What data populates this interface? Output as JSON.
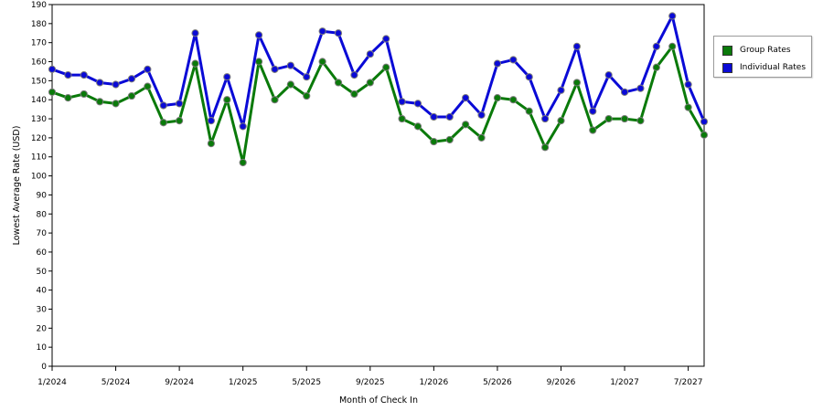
{
  "chart_data": {
    "type": "line",
    "title": "",
    "xlabel": "Month of Check In",
    "ylabel": "Lowest Average Rate (USD)",
    "ylim": [
      0,
      190
    ],
    "y_ticks": [
      0,
      10,
      20,
      30,
      40,
      50,
      60,
      70,
      80,
      90,
      100,
      110,
      120,
      130,
      140,
      150,
      160,
      170,
      180,
      190
    ],
    "x_ticks": [
      {
        "index": 0,
        "label": "1/2024"
      },
      {
        "index": 4,
        "label": "5/2024"
      },
      {
        "index": 8,
        "label": "9/2024"
      },
      {
        "index": 12,
        "label": "1/2025"
      },
      {
        "index": 16,
        "label": "5/2025"
      },
      {
        "index": 20,
        "label": "9/2025"
      },
      {
        "index": 24,
        "label": "1/2026"
      },
      {
        "index": 28,
        "label": "5/2026"
      },
      {
        "index": 32,
        "label": "9/2026"
      },
      {
        "index": 36,
        "label": "1/2027"
      },
      {
        "index": 40,
        "label": "7/2027"
      }
    ],
    "x_index_range": [
      0,
      41
    ],
    "grid": true,
    "legend_position": "right",
    "series": [
      {
        "name": "Group Rates",
        "color": "#0a7a0a",
        "values": [
          144,
          141,
          143,
          139,
          138,
          142,
          147,
          128,
          129,
          159,
          117,
          140,
          107,
          160,
          140,
          148,
          142,
          160,
          149,
          143,
          149,
          157,
          130,
          126,
          118,
          119,
          127,
          120,
          141,
          140,
          134,
          115,
          129,
          149,
          124,
          130,
          130,
          129,
          157,
          168,
          136,
          121.5
        ]
      },
      {
        "name": "Individual Rates",
        "color": "#0a0ad6",
        "values": [
          156,
          153,
          153,
          149,
          148,
          151,
          156,
          137,
          138,
          175,
          129,
          152,
          126,
          174,
          156,
          158,
          152,
          176,
          175,
          153,
          164,
          172,
          139,
          138,
          131,
          131,
          141,
          132,
          159,
          161,
          152,
          130,
          145,
          168,
          134,
          153,
          144,
          146,
          168,
          184,
          148,
          128.5
        ]
      }
    ]
  }
}
